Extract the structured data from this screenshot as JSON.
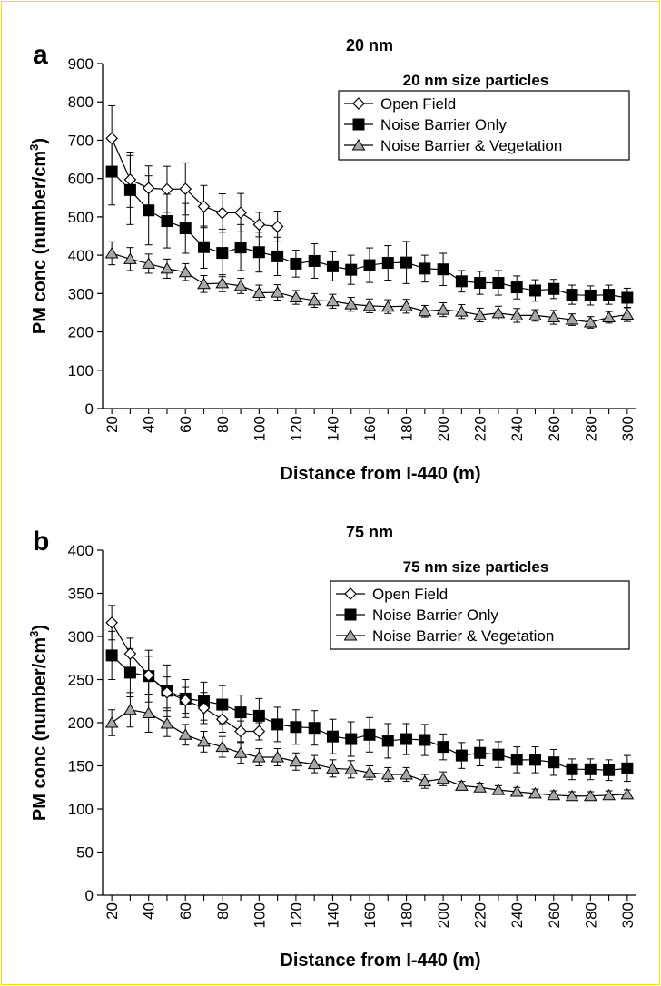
{
  "chart_data": [
    {
      "type": "line",
      "panel_label": "a",
      "title": "20 nm",
      "legend_title": "20 nm size particles",
      "xlabel": "Distance from I-440 (m)",
      "ylabel_main": "PM conc (number/cm",
      "ylabel_sup": "3",
      "ylabel_close": ")",
      "xlim": [
        15,
        305
      ],
      "ylim": [
        0,
        900
      ],
      "yticks": [
        0,
        100,
        200,
        300,
        400,
        500,
        600,
        700,
        800,
        900
      ],
      "xticks": [
        20,
        40,
        60,
        80,
        100,
        120,
        140,
        160,
        180,
        200,
        220,
        240,
        260,
        280,
        300
      ],
      "legend_position": "top-right",
      "series": [
        {
          "name": "Open Field",
          "marker": "diamond-open",
          "x": [
            20,
            30,
            40,
            50,
            60,
            70,
            80,
            90,
            100,
            110
          ],
          "y": [
            705,
            597,
            575,
            572,
            573,
            527,
            510,
            511,
            480,
            475
          ],
          "err": [
            85,
            72,
            58,
            60,
            68,
            55,
            50,
            50,
            32,
            40
          ]
        },
        {
          "name": "Noise Barrier Only",
          "marker": "square-filled",
          "x": [
            20,
            30,
            40,
            50,
            60,
            70,
            80,
            90,
            100,
            110,
            120,
            130,
            140,
            150,
            160,
            170,
            180,
            190,
            200,
            210,
            220,
            230,
            240,
            250,
            260,
            270,
            280,
            290,
            300
          ],
          "y": [
            618,
            570,
            517,
            489,
            470,
            421,
            406,
            420,
            408,
            397,
            378,
            385,
            371,
            362,
            374,
            380,
            381,
            365,
            363,
            332,
            328,
            328,
            316,
            308,
            312,
            297,
            295,
            297,
            289
          ],
          "err": [
            87,
            90,
            90,
            70,
            65,
            55,
            62,
            60,
            52,
            50,
            35,
            45,
            38,
            38,
            45,
            45,
            55,
            35,
            42,
            28,
            30,
            32,
            30,
            28,
            25,
            25,
            25,
            25,
            25
          ]
        },
        {
          "name": "Noise Barrier & Vegetation",
          "marker": "triangle-filled-gray",
          "x": [
            20,
            30,
            40,
            50,
            60,
            70,
            80,
            90,
            100,
            110,
            120,
            130,
            140,
            150,
            160,
            170,
            180,
            190,
            200,
            210,
            220,
            230,
            240,
            250,
            260,
            270,
            280,
            290,
            300
          ],
          "y": [
            405,
            390,
            378,
            365,
            356,
            325,
            327,
            320,
            302,
            303,
            290,
            282,
            280,
            272,
            268,
            266,
            267,
            254,
            258,
            253,
            244,
            249,
            243,
            243,
            238,
            232,
            225,
            238,
            245
          ],
          "err": [
            30,
            30,
            25,
            25,
            22,
            22,
            22,
            20,
            20,
            20,
            18,
            18,
            18,
            18,
            18,
            18,
            18,
            15,
            18,
            18,
            18,
            18,
            18,
            15,
            18,
            15,
            15,
            15,
            18
          ]
        }
      ]
    },
    {
      "type": "line",
      "panel_label": "b",
      "title": "75 nm",
      "legend_title": "75 nm size particles",
      "xlabel": "Distance from I-440 (m)",
      "ylabel_main": "PM conc (number/cm",
      "ylabel_sup": "3",
      "ylabel_close": ")",
      "xlim": [
        15,
        305
      ],
      "ylim": [
        0,
        400
      ],
      "yticks": [
        0,
        50,
        100,
        150,
        200,
        250,
        300,
        350,
        400
      ],
      "xticks": [
        20,
        40,
        60,
        80,
        100,
        120,
        140,
        160,
        180,
        200,
        220,
        240,
        260,
        280,
        300
      ],
      "legend_position": "top-right",
      "series": [
        {
          "name": "Open Field",
          "marker": "diamond-open",
          "x": [
            20,
            30,
            40,
            50,
            60,
            70,
            80,
            90,
            100
          ],
          "y": [
            316,
            280,
            255,
            235,
            226,
            217,
            204,
            190,
            190
          ],
          "err": [
            20,
            18,
            22,
            18,
            15,
            18,
            15,
            12,
            10
          ]
        },
        {
          "name": "Noise Barrier Only",
          "marker": "square-filled",
          "x": [
            20,
            30,
            40,
            50,
            60,
            70,
            80,
            90,
            100,
            110,
            120,
            130,
            140,
            150,
            160,
            170,
            180,
            190,
            200,
            210,
            220,
            230,
            240,
            250,
            260,
            270,
            280,
            290,
            300
          ],
          "y": [
            278,
            258,
            254,
            237,
            228,
            225,
            221,
            212,
            208,
            198,
            195,
            194,
            184,
            181,
            186,
            179,
            181,
            180,
            172,
            162,
            165,
            163,
            157,
            157,
            154,
            146,
            146,
            145,
            147
          ],
          "err": [
            28,
            28,
            30,
            30,
            22,
            22,
            22,
            20,
            20,
            20,
            20,
            20,
            20,
            20,
            20,
            20,
            18,
            18,
            15,
            15,
            15,
            15,
            15,
            15,
            15,
            12,
            12,
            12,
            15
          ]
        },
        {
          "name": "Noise Barrier & Vegetation",
          "marker": "triangle-filled-gray",
          "x": [
            20,
            30,
            40,
            50,
            60,
            70,
            80,
            90,
            100,
            110,
            120,
            130,
            140,
            150,
            160,
            170,
            180,
            190,
            200,
            210,
            220,
            230,
            240,
            250,
            260,
            270,
            280,
            290,
            300
          ],
          "y": [
            200,
            215,
            211,
            199,
            186,
            178,
            172,
            165,
            160,
            160,
            155,
            152,
            147,
            146,
            142,
            140,
            140,
            132,
            135,
            127,
            125,
            122,
            120,
            118,
            116,
            115,
            115,
            116,
            117
          ],
          "err": [
            15,
            20,
            22,
            15,
            12,
            12,
            12,
            12,
            10,
            10,
            10,
            10,
            10,
            10,
            8,
            8,
            8,
            8,
            8,
            5,
            5,
            5,
            5,
            5,
            5,
            5,
            5,
            5,
            5
          ]
        }
      ]
    }
  ]
}
